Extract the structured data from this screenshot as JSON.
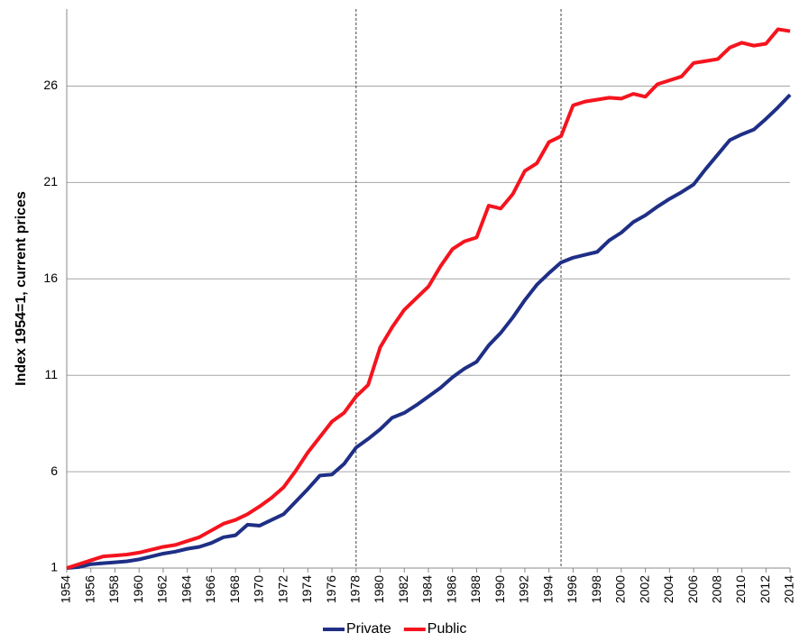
{
  "chart_data": {
    "type": "line",
    "y_label": "Index 1954=1, current prices",
    "x": [
      1954,
      1955,
      1956,
      1957,
      1958,
      1959,
      1960,
      1961,
      1962,
      1963,
      1964,
      1965,
      1966,
      1967,
      1968,
      1969,
      1970,
      1971,
      1972,
      1973,
      1974,
      1975,
      1976,
      1977,
      1978,
      1979,
      1980,
      1981,
      1982,
      1983,
      1984,
      1985,
      1986,
      1987,
      1988,
      1989,
      1990,
      1991,
      1992,
      1993,
      1994,
      1995,
      1996,
      1997,
      1998,
      1999,
      2000,
      2001,
      2002,
      2003,
      2004,
      2005,
      2006,
      2007,
      2008,
      2009,
      2010,
      2011,
      2012,
      2013,
      2014
    ],
    "series": [
      {
        "name": "Private",
        "color": "#1f2f86",
        "values": [
          1,
          1.05,
          1.2,
          1.25,
          1.3,
          1.35,
          1.45,
          1.6,
          1.75,
          1.85,
          2.0,
          2.1,
          2.3,
          2.6,
          2.7,
          3.25,
          3.2,
          3.5,
          3.8,
          4.45,
          5.1,
          5.8,
          5.85,
          6.4,
          7.25,
          7.7,
          8.2,
          8.8,
          9.05,
          9.45,
          9.9,
          10.35,
          10.9,
          11.35,
          11.7,
          12.55,
          13.2,
          14.0,
          14.9,
          15.7,
          16.3,
          16.85,
          17.1,
          17.25,
          17.4,
          18.0,
          18.4,
          18.95,
          19.3,
          19.75,
          20.15,
          20.5,
          20.9,
          21.7,
          22.45,
          23.2,
          23.5,
          23.75,
          24.3,
          24.9,
          25.55
        ]
      },
      {
        "name": "Public",
        "color": "#f5141e",
        "values": [
          1,
          1.2,
          1.4,
          1.6,
          1.65,
          1.7,
          1.8,
          1.95,
          2.1,
          2.2,
          2.4,
          2.6,
          2.95,
          3.3,
          3.5,
          3.8,
          4.2,
          4.65,
          5.2,
          6.05,
          7.0,
          7.8,
          8.6,
          9.05,
          9.9,
          10.5,
          12.45,
          13.5,
          14.4,
          15.0,
          15.6,
          16.65,
          17.55,
          17.95,
          18.15,
          19.8,
          19.65,
          20.4,
          21.6,
          22.0,
          23.1,
          23.4,
          25.0,
          25.2,
          25.3,
          25.4,
          25.35,
          25.6,
          25.45,
          26.1,
          26.3,
          26.5,
          27.2,
          27.3,
          27.4,
          28.0,
          28.25,
          28.1,
          28.2,
          28.95,
          28.85
        ]
      }
    ],
    "xlim": [
      1954,
      2014
    ],
    "xticks": [
      1954,
      1956,
      1958,
      1960,
      1962,
      1964,
      1966,
      1968,
      1970,
      1972,
      1974,
      1976,
      1978,
      1980,
      1982,
      1984,
      1986,
      1988,
      1990,
      1992,
      1994,
      1996,
      1998,
      2000,
      2002,
      2004,
      2006,
      2008,
      2010,
      2012,
      2014
    ],
    "ylim": [
      1,
      30
    ],
    "yticks": [
      1,
      6,
      11,
      16,
      21,
      26
    ],
    "grid": true,
    "vlines": [
      1978,
      1995
    ],
    "legend": "bottom"
  }
}
